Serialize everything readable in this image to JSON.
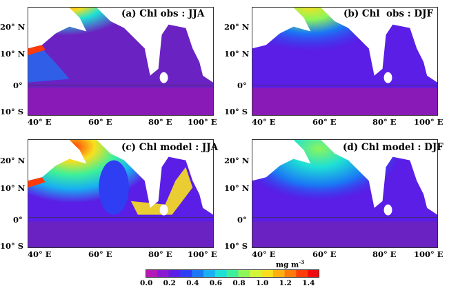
{
  "panels": [
    {
      "title": "(a) Chl obs : JJA",
      "kind": "obs",
      "season": "jja"
    },
    {
      "title": "(b) Chl  obs : DJF",
      "kind": "obs",
      "season": "djf"
    },
    {
      "title": "(c) Chl model : JJA",
      "kind": "model",
      "season": "jja"
    },
    {
      "title": "(d) Chl model : DJF",
      "kind": "model",
      "season": "djf"
    }
  ],
  "lat_ticks": [
    "20° N",
    "10° N",
    "0°",
    "10° S"
  ],
  "lon_ticks": [
    "40° E",
    "60° E",
    "80° E",
    "100° E"
  ],
  "colorbar": {
    "unit": "mg m",
    "unit_sup": "-3",
    "ticks": [
      "0.0",
      "0.2",
      "0.4",
      "0.6",
      "0.8",
      "1.0",
      "1.2",
      "1.4"
    ],
    "colors": [
      "#b61ab6",
      "#8a1ad0",
      "#5a1ee6",
      "#2f3ef2",
      "#1a78f5",
      "#18b0f2",
      "#1ee0d6",
      "#3ef09a",
      "#8cf55a",
      "#d2f53a",
      "#f8e01e",
      "#ffb010",
      "#ff7a0a",
      "#ff3c08",
      "#f00c0c"
    ]
  }
}
